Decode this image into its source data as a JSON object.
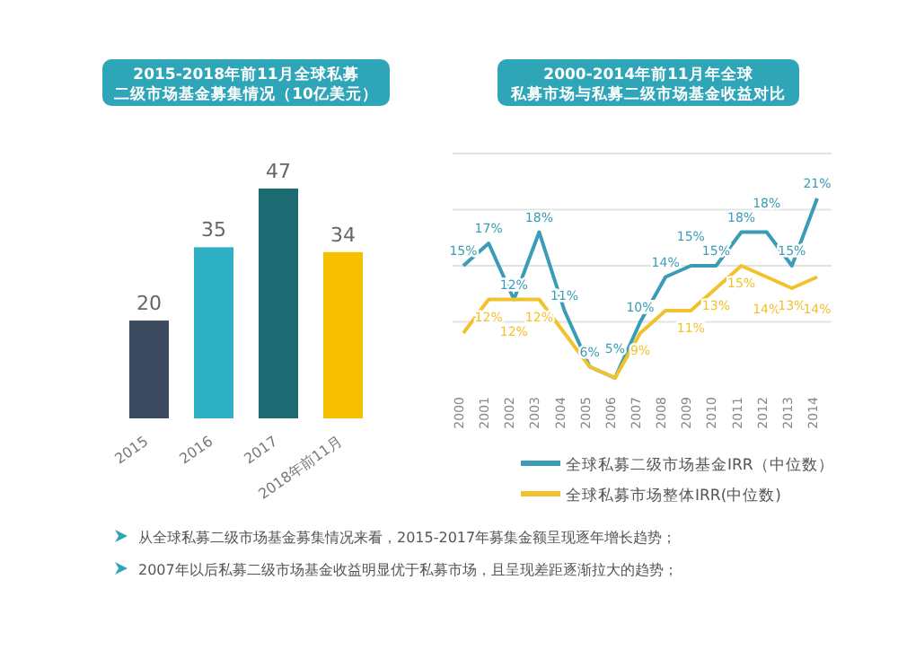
{
  "chart_data": [
    {
      "type": "bar",
      "title": "2015-2018年前11月全球私募二级市场基金募集情况（10亿美元）",
      "categories": [
        "2015",
        "2016",
        "2017",
        "2018年前11月"
      ],
      "values": [
        20,
        35,
        47,
        34
      ],
      "colors": [
        "#3b4a5e",
        "#2fb1c5",
        "#1c6a72",
        "#f6c000"
      ],
      "data_labels": true
    },
    {
      "type": "line",
      "title": "2000-2014年前11月年全球私募市场与私募二级市场基金收益对比",
      "categories": [
        "2000",
        "2001",
        "2002",
        "2003",
        "2004",
        "2005",
        "2006",
        "2007",
        "2008",
        "2009",
        "2010",
        "2011",
        "2012",
        "2013",
        "2014"
      ],
      "yticks": [
        {
          "value": 10,
          "label": null
        },
        {
          "value": 15,
          "label": null
        },
        {
          "value": 20,
          "label": null
        },
        {
          "value": 25,
          "label": null
        }
      ],
      "grid": "y",
      "legend": "bottom",
      "tick_labels": "x",
      "series": [
        {
          "name": "全球私募二级市场基金IRR（中位数）",
          "color": "#3a9db5",
          "values": [
            15,
            17,
            12,
            18,
            11,
            6,
            5,
            10,
            14,
            15,
            15,
            18,
            18,
            15,
            21
          ],
          "value_labels": [
            "15%",
            "17%",
            "12%",
            "18%",
            "11%",
            "6%",
            "5%",
            "10%",
            "14%",
            "15%",
            "15%",
            "18%",
            "18%",
            "15%",
            "21%"
          ]
        },
        {
          "name": "全球私募市场整体IRR(中位数)",
          "color": "#f2c12e",
          "values": [
            9,
            12,
            12,
            12,
            9,
            6,
            5,
            9,
            11,
            11,
            13,
            15,
            14,
            13,
            14
          ],
          "value_labels": [
            null,
            "12%",
            "12%",
            "12%",
            null,
            null,
            null,
            "9%",
            null,
            "11%",
            "13%",
            "15%",
            "14%",
            "13%",
            "14%"
          ]
        }
      ]
    },
    {
      "type": "other",
      "annotations": [
        "从全球私募二级市场基金募集情况来看，2015-2017年募集金额呈现逐年增长趋势；",
        "2007年以后私募二级市场基金收益明显优于私募市场，且呈现差距逐渐拉大的趋势；"
      ]
    }
  ]
}
